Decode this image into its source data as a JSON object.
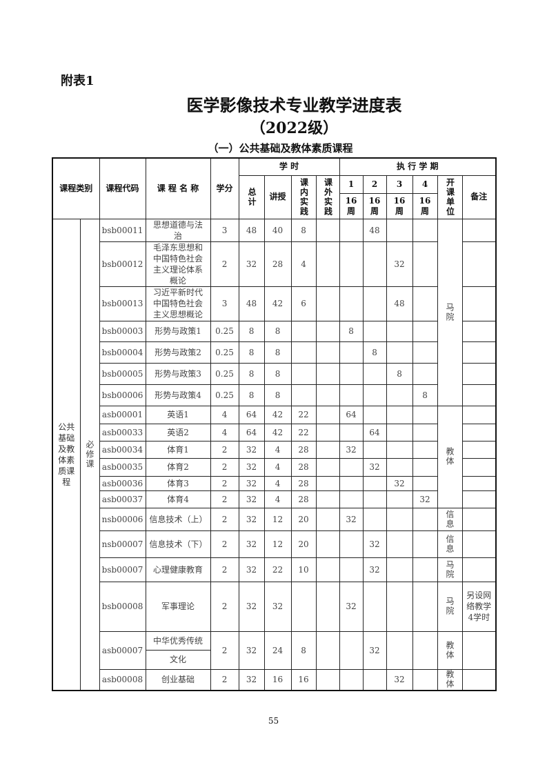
{
  "appendix": "附表1",
  "title": "医学影像技术专业教学进度表",
  "subtitle": "（2022级）",
  "section": "（一）公共基础及教体素质课程",
  "header": {
    "category": "课程类别",
    "code": "课程代码",
    "name": "课 程 名 称",
    "credit": "学分",
    "hours": "学 时",
    "total": "总计",
    "lecture": "讲授",
    "inner": "课内实践",
    "outer": "课外实践",
    "semester": "执 行 学 期",
    "sems": [
      "1",
      "2",
      "3",
      "4"
    ],
    "weeks": [
      "16周",
      "16周",
      "16周",
      "16周"
    ],
    "dept": "开课单位",
    "remark": "备注"
  },
  "category": "公共基础及教体素质课程",
  "subcategory": "必修课",
  "rows": [
    {
      "code": "bsb00011",
      "name": "思想道德与法治",
      "credit": "3",
      "total": "48",
      "lecture": "40",
      "inner": "8",
      "outer": "",
      "sem": [
        "",
        "48",
        "",
        ""
      ],
      "dept": "马院",
      "dept_span": 7,
      "remark": ""
    },
    {
      "code": "bsb00012",
      "name": "毛泽东思想和中国特色社会主义理论体系概论",
      "credit": "2",
      "total": "32",
      "lecture": "28",
      "inner": "4",
      "outer": "",
      "sem": [
        "",
        "",
        "32",
        ""
      ],
      "remark": ""
    },
    {
      "code": "bsb00013",
      "name": "习近平新时代中国特色社会主义思想概论",
      "credit": "3",
      "total": "48",
      "lecture": "42",
      "inner": "6",
      "outer": "",
      "sem": [
        "",
        "",
        "48",
        ""
      ],
      "remark": ""
    },
    {
      "code": "bsb00003",
      "name": "形势与政策1",
      "credit": "0.25",
      "total": "8",
      "lecture": "8",
      "inner": "",
      "outer": "",
      "sem": [
        "8",
        "",
        "",
        ""
      ],
      "remark": ""
    },
    {
      "code": "bsb00004",
      "name": "形势与政策2",
      "credit": "0.25",
      "total": "8",
      "lecture": "8",
      "inner": "",
      "outer": "",
      "sem": [
        "",
        "8",
        "",
        ""
      ],
      "remark": ""
    },
    {
      "code": "bsb00005",
      "name": "形势与政策3",
      "credit": "0.25",
      "total": "8",
      "lecture": "8",
      "inner": "",
      "outer": "",
      "sem": [
        "",
        "",
        "8",
        ""
      ],
      "remark": ""
    },
    {
      "code": "bsb00006",
      "name": "形势与政策4",
      "credit": "0.25",
      "total": "8",
      "lecture": "8",
      "inner": "",
      "outer": "",
      "sem": [
        "",
        "",
        "",
        "8"
      ],
      "remark": ""
    },
    {
      "code": "asb00001",
      "name": "英语1",
      "credit": "4",
      "total": "64",
      "lecture": "42",
      "inner": "22",
      "outer": "",
      "sem": [
        "64",
        "",
        "",
        ""
      ],
      "dept": "教体",
      "dept_span": 6,
      "remark": ""
    },
    {
      "code": "asb00033",
      "name": "英语2",
      "credit": "4",
      "total": "64",
      "lecture": "42",
      "inner": "22",
      "outer": "",
      "sem": [
        "",
        "64",
        "",
        ""
      ],
      "remark": ""
    },
    {
      "code": "asb00034",
      "name": "体育1",
      "credit": "2",
      "total": "32",
      "lecture": "4",
      "inner": "28",
      "outer": "",
      "sem": [
        "32",
        "",
        "",
        ""
      ],
      "remark": ""
    },
    {
      "code": "asb00035",
      "name": "体育2",
      "credit": "2",
      "total": "32",
      "lecture": "4",
      "inner": "28",
      "outer": "",
      "sem": [
        "",
        "32",
        "",
        ""
      ],
      "remark": ""
    },
    {
      "code": "asb00036",
      "name": "体育3",
      "credit": "2",
      "total": "32",
      "lecture": "4",
      "inner": "28",
      "outer": "",
      "sem": [
        "",
        "",
        "32",
        ""
      ],
      "remark": ""
    },
    {
      "code": "asb00037",
      "name": "体育4",
      "credit": "2",
      "total": "32",
      "lecture": "4",
      "inner": "28",
      "outer": "",
      "sem": [
        "",
        "",
        "",
        "32"
      ],
      "remark": ""
    },
    {
      "code": "nsb00006",
      "name": "信息技术（上）",
      "credit": "2",
      "total": "32",
      "lecture": "12",
      "inner": "20",
      "outer": "",
      "sem": [
        "32",
        "",
        "",
        ""
      ],
      "dept": "信息",
      "dept_span": 1,
      "remark": ""
    },
    {
      "code": "nsb00007",
      "name": "信息技术（下）",
      "credit": "2",
      "total": "32",
      "lecture": "12",
      "inner": "20",
      "outer": "",
      "sem": [
        "",
        "32",
        "",
        ""
      ],
      "dept": "信息",
      "dept_span": 1,
      "remark": ""
    },
    {
      "code": "bsb00007",
      "name": "心理健康教育",
      "credit": "2",
      "total": "32",
      "lecture": "22",
      "inner": "10",
      "outer": "",
      "sem": [
        "",
        "32",
        "",
        ""
      ],
      "dept": "马院",
      "dept_span": 1,
      "remark": ""
    },
    {
      "code": "bsb00008",
      "name": "军事理论",
      "credit": "2",
      "total": "32",
      "lecture": "32",
      "inner": "",
      "outer": "",
      "sem": [
        "32",
        "",
        "",
        ""
      ],
      "dept": "马院",
      "dept_span": 1,
      "remark": "另设网络教学4学时"
    },
    {
      "code": "asb00007",
      "name": "中华优秀传统",
      "name2": "文化",
      "credit": "2",
      "total": "32",
      "lecture": "24",
      "inner": "8",
      "outer": "",
      "sem": [
        "",
        "32",
        "",
        ""
      ],
      "dept": "教体",
      "dept_span": 1,
      "remark": ""
    },
    {
      "code": "asb00008",
      "name": "创业基础",
      "credit": "2",
      "total": "32",
      "lecture": "16",
      "inner": "16",
      "outer": "",
      "sem": [
        "",
        "",
        "32",
        ""
      ],
      "dept": "教体",
      "dept_span": 1,
      "remark": ""
    }
  ],
  "page_number": "55"
}
